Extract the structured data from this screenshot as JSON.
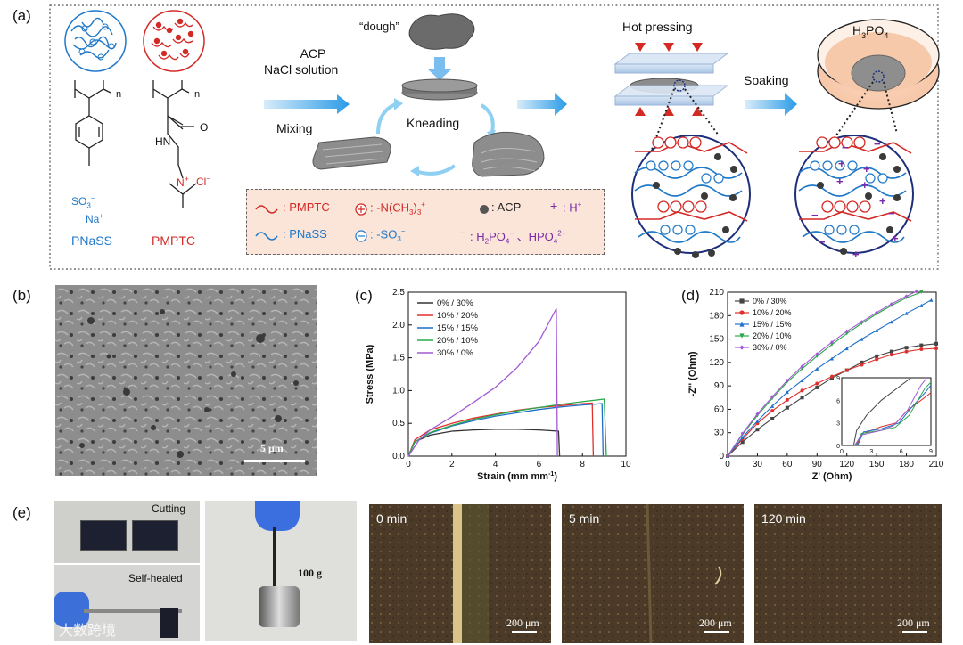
{
  "panels": {
    "a": "(a)",
    "b": "(b)",
    "c": "(c)",
    "d": "(d)",
    "e": "(e)"
  },
  "schematic": {
    "pnass_label": "PNaSS",
    "pmptc_label": "PMPTC",
    "so3": "SO",
    "so3_sub": "3",
    "so3_sup": "−",
    "na": "Na",
    "na_sup": "+",
    "hn": "HN",
    "o": "O",
    "n_plus": "N",
    "n_sup": "+",
    "cl": "Cl",
    "cl_sup": "−",
    "poly_n1": "n",
    "poly_n2": "n",
    "acp_line1": "ACP",
    "acp_line2": "NaCl solution",
    "dough": "“dough”",
    "mixing": "Mixing",
    "kneading": "Kneading",
    "hot_pressing": "Hot pressing",
    "soaking": "Soaking",
    "h3po4": "H",
    "h3po4_sub1": "3",
    "h3po4_rest": "PO",
    "h3po4_sub2": "4",
    "legend": {
      "row1_a": ": PMPTC",
      "row1_b": ": -N(CH",
      "row1_b_sub": "3",
      "row1_b_end": ")",
      "row1_b_sub2": "3",
      "row1_b_sup": "+",
      "row1_c": ": ACP",
      "row1_d": ": H",
      "row1_d_sup": "+",
      "row2_a": ": PNaSS",
      "row2_b": ": -SO",
      "row2_b_sub": "3",
      "row2_b_sup": "−",
      "row2_c": ": H",
      "row2_c_sub": "2",
      "row2_c_mid": "PO",
      "row2_c_sub2": "4",
      "row2_c_sup": "−",
      "row2_c_sep": " 、HPO",
      "row2_c_sub3": "4",
      "row2_c_sup2": "2−",
      "minus": "−",
      "plus": "+"
    },
    "colors": {
      "pmptc": "#d42a26",
      "pnass": "#1f78c8",
      "acp": "#3a3a3a",
      "h_plus": "#7a2aa8",
      "legend_bg": "#fbe4d8"
    }
  },
  "sem": {
    "scale": "5 μm"
  },
  "stress_strain": {
    "chart_data": {
      "type": "line",
      "xlabel": "Strain (mm mm",
      "xlabel_sup": "-1",
      "xlabel_end": ")",
      "ylabel": "Stress (MPa)",
      "xlim": [
        0,
        10
      ],
      "ylim": [
        0,
        2.5
      ],
      "xticks": [
        "0",
        "2",
        "4",
        "6",
        "8",
        "10"
      ],
      "yticks": [
        "0.0",
        "0.5",
        "1.0",
        "1.5",
        "2.0",
        "2.5"
      ],
      "legend_position": "top-left",
      "series": [
        {
          "name": "0% / 30%",
          "color": "#333333",
          "points": [
            [
              0,
              0
            ],
            [
              0.3,
              0.22
            ],
            [
              1,
              0.32
            ],
            [
              2,
              0.38
            ],
            [
              3,
              0.4
            ],
            [
              4,
              0.41
            ],
            [
              5,
              0.41
            ],
            [
              6,
              0.4
            ],
            [
              6.9,
              0.38
            ],
            [
              6.95,
              0
            ]
          ]
        },
        {
          "name": "10% / 20%",
          "color": "#e0302c",
          "points": [
            [
              0,
              0
            ],
            [
              0.3,
              0.25
            ],
            [
              1,
              0.4
            ],
            [
              2,
              0.5
            ],
            [
              3,
              0.58
            ],
            [
              4,
              0.64
            ],
            [
              5,
              0.7
            ],
            [
              6,
              0.74
            ],
            [
              7,
              0.77
            ],
            [
              8,
              0.8
            ],
            [
              8.45,
              0.81
            ],
            [
              8.5,
              0
            ]
          ]
        },
        {
          "name": "15% / 15%",
          "color": "#1f6fc8",
          "points": [
            [
              0,
              0
            ],
            [
              0.3,
              0.22
            ],
            [
              1,
              0.35
            ],
            [
              2,
              0.46
            ],
            [
              3,
              0.54
            ],
            [
              4,
              0.61
            ],
            [
              5,
              0.66
            ],
            [
              6,
              0.71
            ],
            [
              7,
              0.75
            ],
            [
              8,
              0.78
            ],
            [
              8.9,
              0.8
            ],
            [
              8.95,
              0
            ]
          ]
        },
        {
          "name": "20% / 10%",
          "color": "#2aa84a",
          "points": [
            [
              0,
              0
            ],
            [
              0.3,
              0.22
            ],
            [
              1,
              0.36
            ],
            [
              2,
              0.47
            ],
            [
              3,
              0.56
            ],
            [
              4,
              0.63
            ],
            [
              5,
              0.69
            ],
            [
              6,
              0.74
            ],
            [
              7,
              0.79
            ],
            [
              8,
              0.83
            ],
            [
              9,
              0.87
            ],
            [
              9.1,
              0
            ]
          ]
        },
        {
          "name": "30% / 0%",
          "color": "#a25ad6",
          "points": [
            [
              0,
              0
            ],
            [
              0.5,
              0.25
            ],
            [
              1,
              0.4
            ],
            [
              2,
              0.6
            ],
            [
              3,
              0.82
            ],
            [
              4,
              1.05
            ],
            [
              5,
              1.35
            ],
            [
              6,
              1.75
            ],
            [
              6.8,
              2.25
            ],
            [
              6.85,
              0
            ]
          ]
        }
      ]
    }
  },
  "impedance": {
    "chart_data": {
      "type": "scatter",
      "xlabel": "Z' (Ohm)",
      "ylabel": "-Z'' (Ohm)",
      "xlim": [
        0,
        210
      ],
      "ylim": [
        0,
        210
      ],
      "xticks": [
        "0",
        "30",
        "60",
        "90",
        "120",
        "150",
        "180",
        "210"
      ],
      "yticks": [
        "0",
        "30",
        "60",
        "90",
        "120",
        "150",
        "180",
        "210"
      ],
      "legend_position": "top-left",
      "inset": {
        "xlim": [
          0,
          9
        ],
        "ylim": [
          0,
          9
        ],
        "xticks": [
          "0",
          "3",
          "6",
          "9"
        ],
        "yticks": [
          "0",
          "3",
          "6",
          "9"
        ]
      },
      "series": [
        {
          "name": "0% / 30%",
          "color": "#444444",
          "marker": "square",
          "points": [
            [
              0,
              0
            ],
            [
              15,
              18
            ],
            [
              30,
              34
            ],
            [
              45,
              48
            ],
            [
              60,
              62
            ],
            [
              75,
              75
            ],
            [
              90,
              88
            ],
            [
              105,
              100
            ],
            [
              120,
              110
            ],
            [
              135,
              120
            ],
            [
              150,
              128
            ],
            [
              165,
              134
            ],
            [
              180,
              139
            ],
            [
              195,
              142
            ],
            [
              210,
              144
            ]
          ]
        },
        {
          "name": "10% / 20%",
          "color": "#e0302c",
          "marker": "circle",
          "points": [
            [
              0,
              0
            ],
            [
              15,
              22
            ],
            [
              30,
              42
            ],
            [
              45,
              58
            ],
            [
              60,
              72
            ],
            [
              75,
              84
            ],
            [
              90,
              93
            ],
            [
              105,
              102
            ],
            [
              120,
              110
            ],
            [
              135,
              117
            ],
            [
              150,
              124
            ],
            [
              165,
              130
            ],
            [
              180,
              134
            ],
            [
              195,
              137
            ],
            [
              210,
              138
            ]
          ]
        },
        {
          "name": "15% / 15%",
          "color": "#1f6fc8",
          "marker": "triangle",
          "points": [
            [
              0,
              0
            ],
            [
              15,
              24
            ],
            [
              30,
              45
            ],
            [
              45,
              64
            ],
            [
              60,
              82
            ],
            [
              75,
              97
            ],
            [
              90,
              112
            ],
            [
              105,
              125
            ],
            [
              120,
              138
            ],
            [
              135,
              150
            ],
            [
              150,
              161
            ],
            [
              165,
              172
            ],
            [
              180,
              183
            ],
            [
              195,
              193
            ],
            [
              205,
              200
            ]
          ]
        },
        {
          "name": "20% / 10%",
          "color": "#2aa84a",
          "marker": "triangle-down",
          "points": [
            [
              0,
              0
            ],
            [
              15,
              28
            ],
            [
              30,
              52
            ],
            [
              45,
              74
            ],
            [
              60,
              95
            ],
            [
              75,
              112
            ],
            [
              90,
              128
            ],
            [
              105,
              143
            ],
            [
              120,
              157
            ],
            [
              135,
              170
            ],
            [
              150,
              182
            ],
            [
              165,
              193
            ],
            [
              180,
              203
            ],
            [
              195,
              210
            ]
          ]
        },
        {
          "name": "30% / 0%",
          "color": "#a25ad6",
          "marker": "diamond",
          "points": [
            [
              0,
              0
            ],
            [
              15,
              29
            ],
            [
              30,
              54
            ],
            [
              45,
              76
            ],
            [
              60,
              97
            ],
            [
              75,
              115
            ],
            [
              90,
              131
            ],
            [
              105,
              146
            ],
            [
              120,
              160
            ],
            [
              135,
              172
            ],
            [
              150,
              184
            ],
            [
              165,
              195
            ],
            [
              180,
              205
            ],
            [
              190,
              211
            ]
          ]
        }
      ]
    }
  },
  "photos": {
    "cutting": "Cutting",
    "self_healed": "Self-healed",
    "weight": "100 g",
    "t0": "0 min",
    "t5": "5 min",
    "t120": "120 min",
    "scale200": "200 μm",
    "watermark": "大数跨境"
  }
}
